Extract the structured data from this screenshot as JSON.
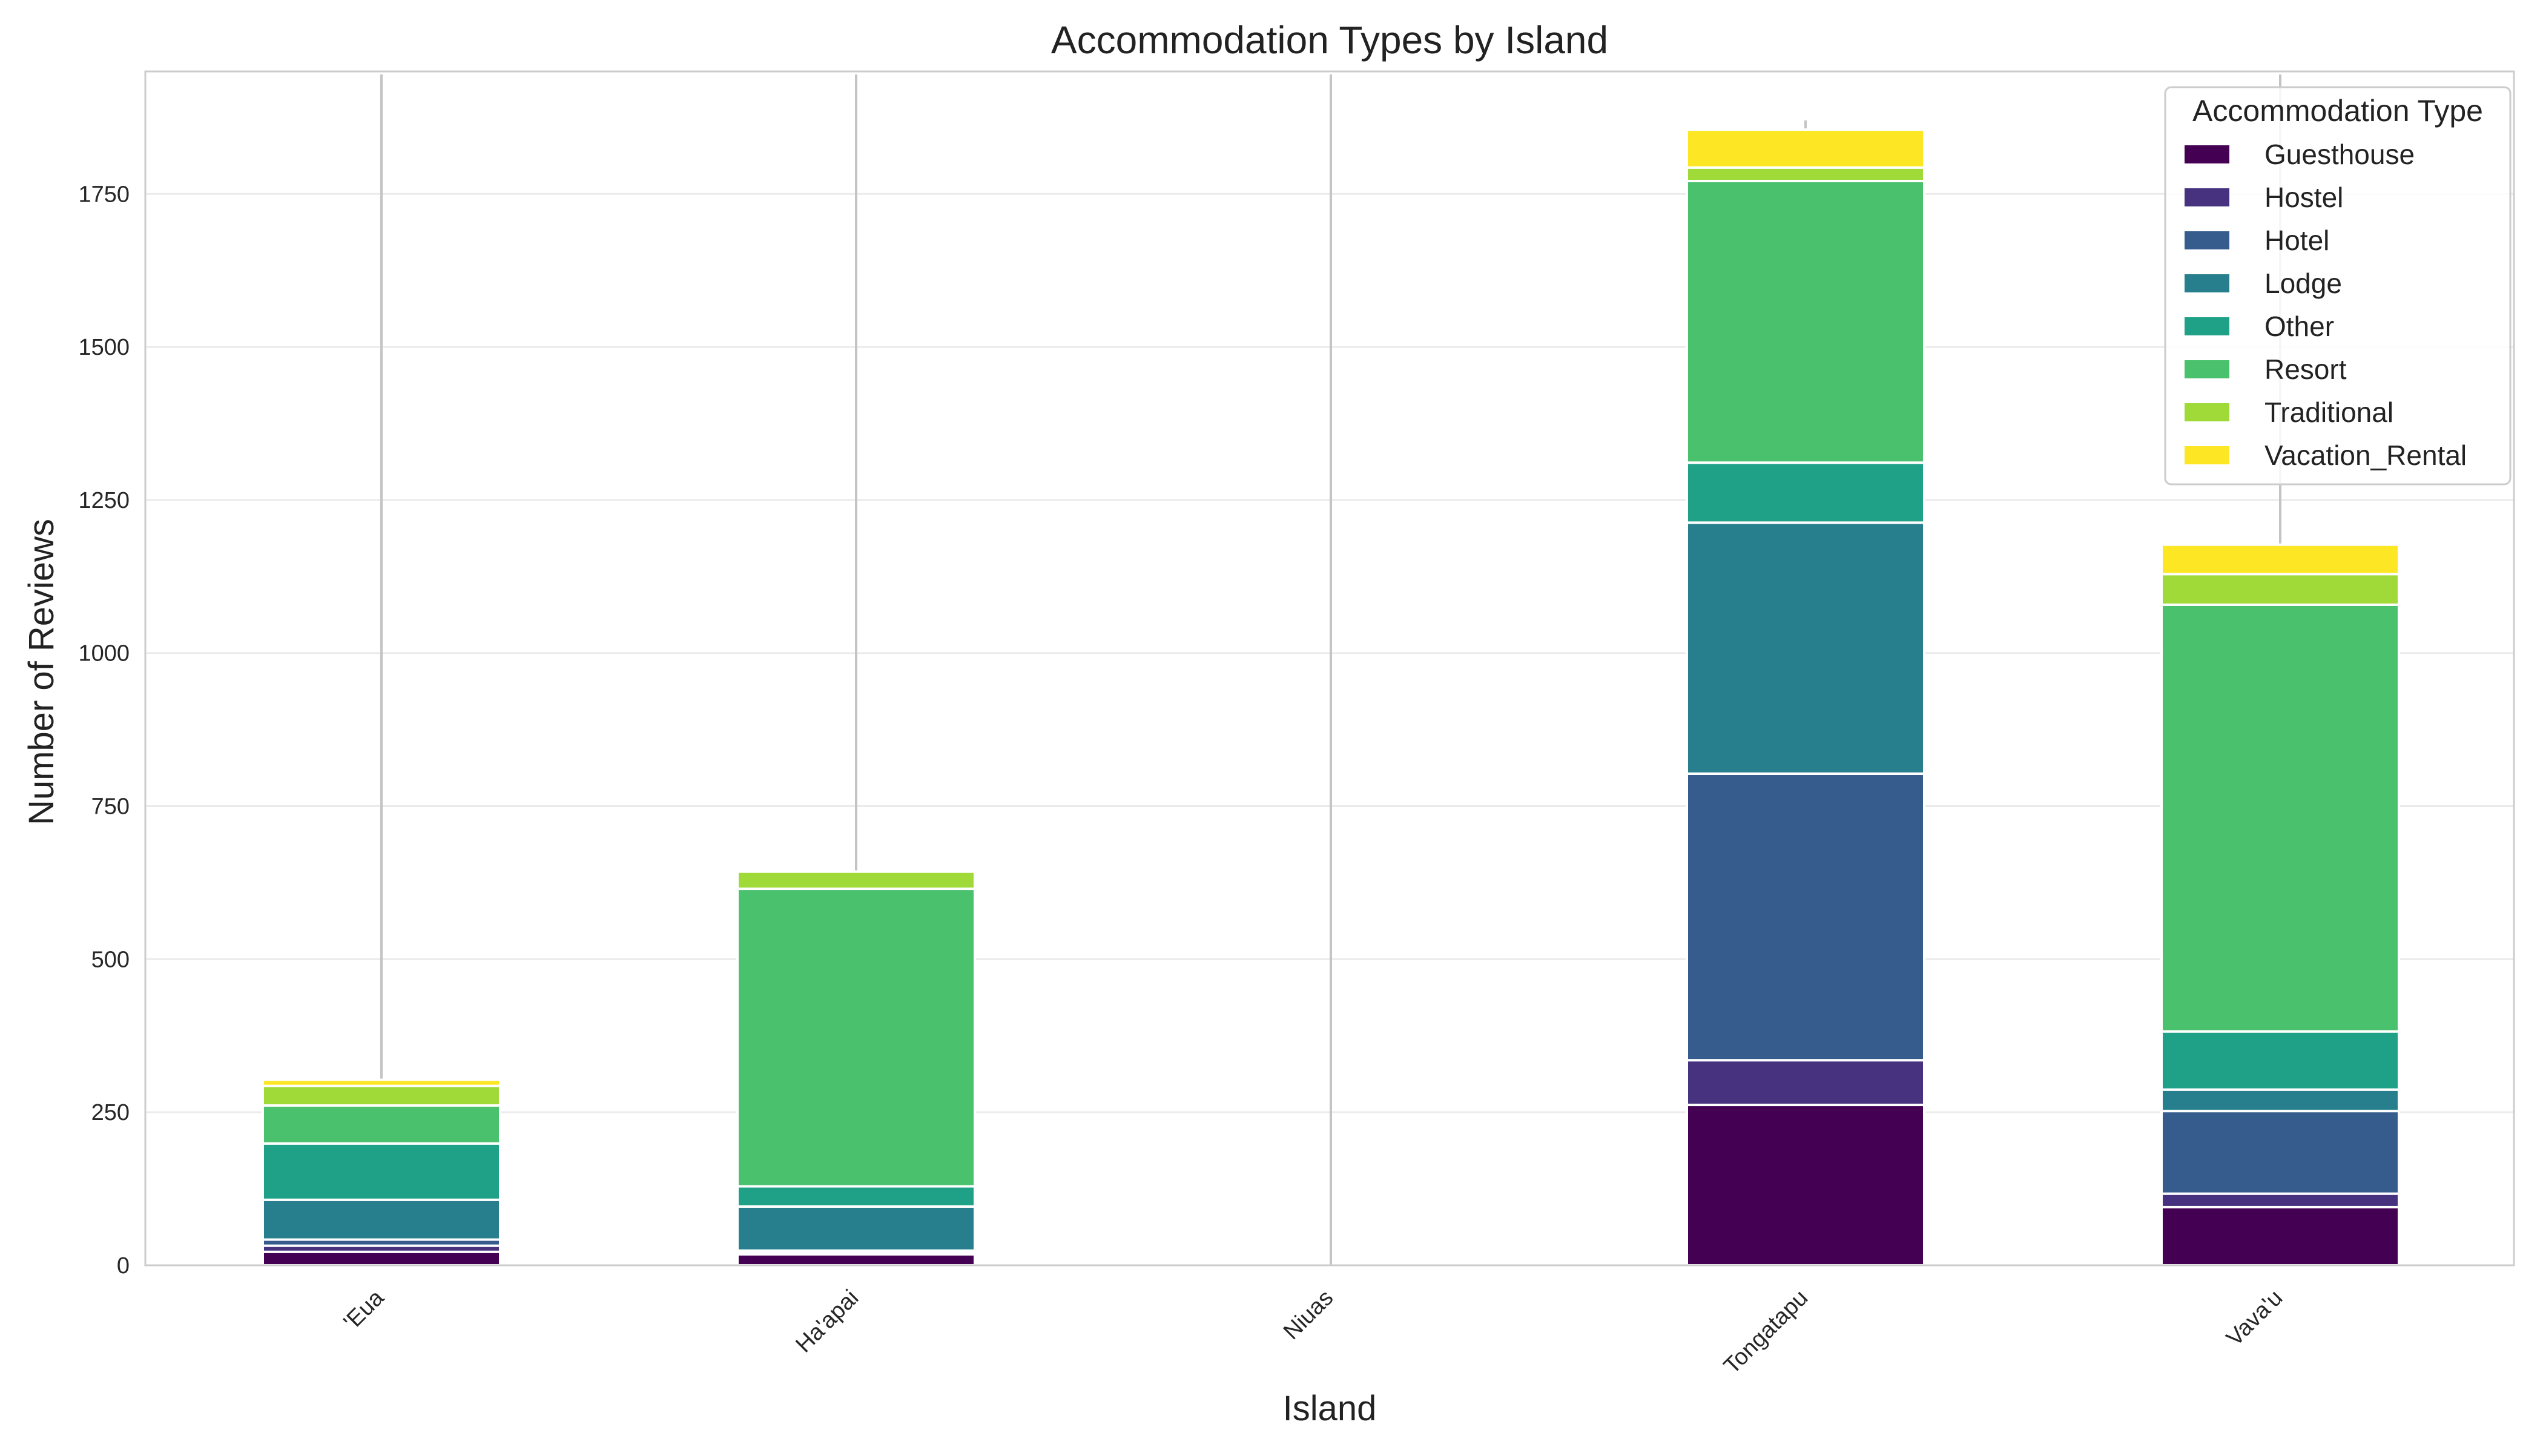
{
  "chart_data": {
    "type": "bar",
    "stacked": true,
    "title": "Accommodation Types by Island",
    "xlabel": "Island",
    "ylabel": "Number of Reviews",
    "ylim": [
      0,
      1950
    ],
    "yticks": [
      "0",
      "250",
      "500",
      "750",
      "1000",
      "1250",
      "1500",
      "1750"
    ],
    "grid": true,
    "legend_title": "Accommodation Type",
    "legend_position": "top-right",
    "categories": [
      "'Eua",
      "Ha'apai",
      "Niuas",
      "Tongatapu",
      "Vava'u"
    ],
    "series": [
      {
        "name": "Guesthouse",
        "color": "#440154",
        "values": [
          22,
          18,
          0,
          262,
          95
        ]
      },
      {
        "name": "Hostel",
        "color": "#46327e",
        "values": [
          10,
          4,
          0,
          73,
          22
        ]
      },
      {
        "name": "Hotel",
        "color": "#365c8d",
        "values": [
          10,
          2,
          0,
          468,
          135
        ]
      },
      {
        "name": "Lodge",
        "color": "#277f8e",
        "values": [
          65,
          72,
          0,
          410,
          35
        ]
      },
      {
        "name": "Other",
        "color": "#1fa187",
        "values": [
          92,
          33,
          0,
          98,
          95
        ]
      },
      {
        "name": "Resort",
        "color": "#4ac16d",
        "values": [
          62,
          486,
          0,
          460,
          697
        ]
      },
      {
        "name": "Traditional",
        "color": "#a0da39",
        "values": [
          32,
          28,
          0,
          22,
          50
        ]
      },
      {
        "name": "Vacation_Rental",
        "color": "#fde725",
        "values": [
          10,
          0,
          0,
          62,
          48
        ]
      }
    ],
    "error_bar_tops": [
      1945,
      1945,
      1945,
      1870,
      1945
    ]
  }
}
